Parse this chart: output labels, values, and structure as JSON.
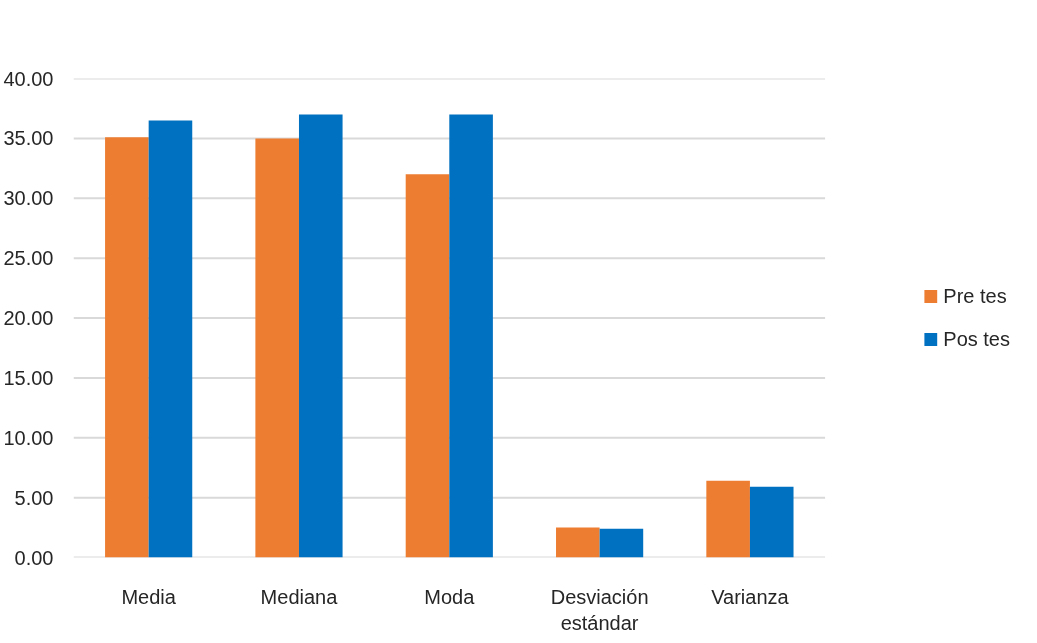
{
  "chart_data": {
    "type": "bar",
    "categories": [
      "Media",
      "Mediana",
      "Moda",
      "Desviación estándar",
      "Varianza"
    ],
    "series": [
      {
        "name": "Pre tes",
        "color": "#ed7d31",
        "values": [
          35.1,
          35.0,
          32.0,
          2.5,
          6.4
        ]
      },
      {
        "name": "Pos tes",
        "color": "#0070c0",
        "values": [
          36.5,
          37.0,
          37.0,
          2.4,
          5.9
        ]
      }
    ],
    "ylim": [
      0,
      40
    ],
    "yticks": [
      {
        "value": 0,
        "label": "0.00"
      },
      {
        "value": 5,
        "label": "5.00"
      },
      {
        "value": 10,
        "label": "10.00"
      },
      {
        "value": 15,
        "label": "15.00"
      },
      {
        "value": 20,
        "label": "20.00"
      },
      {
        "value": 25,
        "label": "25.00"
      },
      {
        "value": 30,
        "label": "30.00"
      },
      {
        "value": 35,
        "label": "35.00"
      },
      {
        "value": 40,
        "label": "40.00"
      }
    ],
    "grid": "y",
    "legend": "right"
  }
}
